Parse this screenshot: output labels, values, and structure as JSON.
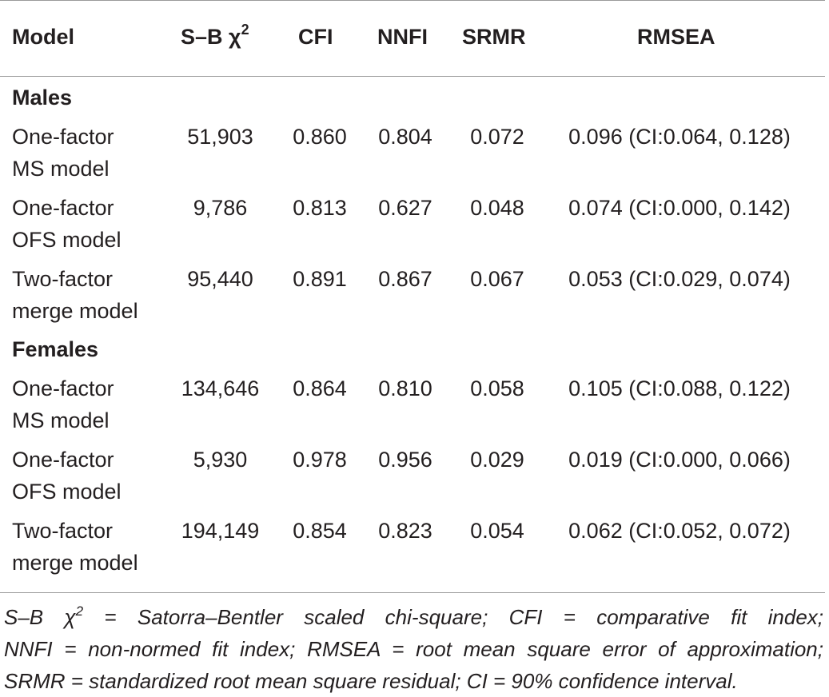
{
  "table": {
    "headers": {
      "model": "Model",
      "chi_base": "S–B χ",
      "chi_sup": "2",
      "cfi": "CFI",
      "nnfi": "NNFI",
      "srmr": "SRMR",
      "rmsea": "RMSEA"
    },
    "groups": [
      {
        "label": "Males",
        "rows": [
          {
            "model_line1": "One-factor",
            "model_line2": "MS model",
            "chi": "51,903",
            "cfi": "0.860",
            "nnfi": "0.804",
            "srmr": "0.072",
            "rmsea": "0.096 (CI:0.064, 0.128)"
          },
          {
            "model_line1": "One-factor",
            "model_line2": "OFS model",
            "chi": "9,786",
            "cfi": "0.813",
            "nnfi": "0.627",
            "srmr": "0.048",
            "rmsea": "0.074 (CI:0.000, 0.142)"
          },
          {
            "model_line1": "Two-factor",
            "model_line2": "merge model",
            "chi": "95,440",
            "cfi": "0.891",
            "nnfi": "0.867",
            "srmr": "0.067",
            "rmsea": "0.053 (CI:0.029, 0.074)"
          }
        ]
      },
      {
        "label": "Females",
        "rows": [
          {
            "model_line1": "One-factor",
            "model_line2": "MS model",
            "chi": "134,646",
            "cfi": "0.864",
            "nnfi": "0.810",
            "srmr": "0.058",
            "rmsea": "0.105 (CI:0.088, 0.122)"
          },
          {
            "model_line1": "One-factor",
            "model_line2": "OFS model",
            "chi": "5,930",
            "cfi": "0.978",
            "nnfi": "0.956",
            "srmr": "0.029",
            "rmsea": "0.019 (CI:0.000, 0.066)"
          },
          {
            "model_line1": "Two-factor",
            "model_line2": "merge model",
            "chi": "194,149",
            "cfi": "0.854",
            "nnfi": "0.823",
            "srmr": "0.054",
            "rmsea": "0.062 (CI:0.052, 0.072)"
          }
        ]
      }
    ]
  },
  "footnote": {
    "line1_pre": "S–B χ",
    "line1_sup": "2",
    "line1_post": " = Satorra–Bentler scaled chi-square; CFI = comparative fit index;",
    "line2": "NNFI = non-normed fit index; RMSEA = root mean square error of approximation;",
    "line3": "SRMR = standardized root mean square residual; CI = 90% confidence interval."
  }
}
